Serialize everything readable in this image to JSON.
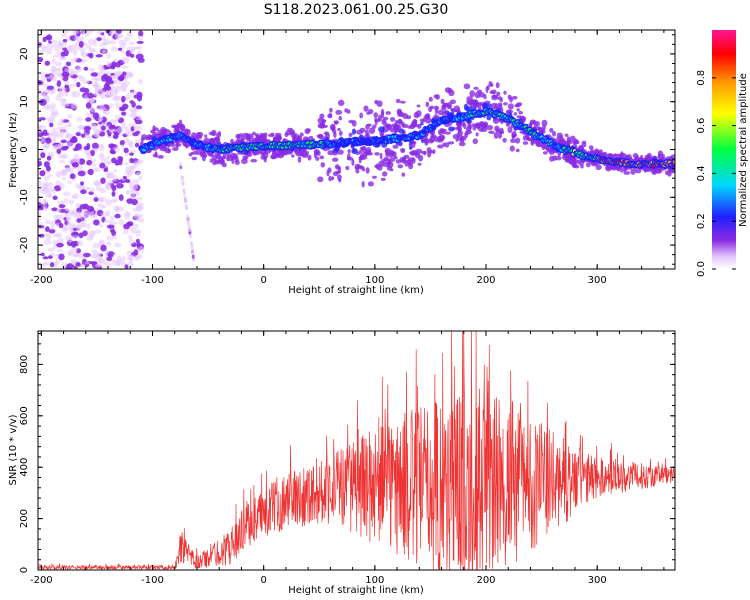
{
  "title": "S118.2023.061.00.25.G30",
  "chart_data": [
    {
      "type": "heatmap",
      "xlabel": "Height of straight line (km)",
      "ylabel": "Frequency (Hz)",
      "xlim": [
        -203,
        370
      ],
      "ylim": [
        -25,
        25
      ],
      "xticks": [
        -200,
        -100,
        0,
        100,
        200,
        300
      ],
      "yticks": [
        -20,
        -10,
        0,
        10,
        20
      ],
      "colorbar": {
        "label": "Normalized spectral amplitude",
        "range": [
          0,
          1
        ],
        "ticks": [
          "0.0",
          "0.2",
          "0.4",
          "0.6",
          "0.8"
        ],
        "colormap": "rainbow (white → violet → blue → cyan → green → yellow → orange → red → magenta)"
      },
      "ridge": {
        "description": "dominant frequency vs height",
        "points": [
          {
            "x": -110,
            "y": 0
          },
          {
            "x": -90,
            "y": 2
          },
          {
            "x": -75,
            "y": 3
          },
          {
            "x": -60,
            "y": 1
          },
          {
            "x": -40,
            "y": 0
          },
          {
            "x": 0,
            "y": 0.8
          },
          {
            "x": 50,
            "y": 1
          },
          {
            "x": 80,
            "y": 1.5
          },
          {
            "x": 110,
            "y": 2
          },
          {
            "x": 140,
            "y": 3
          },
          {
            "x": 160,
            "y": 6
          },
          {
            "x": 180,
            "y": 7
          },
          {
            "x": 200,
            "y": 8
          },
          {
            "x": 220,
            "y": 6.5
          },
          {
            "x": 245,
            "y": 3
          },
          {
            "x": 270,
            "y": 0
          },
          {
            "x": 300,
            "y": -2
          },
          {
            "x": 330,
            "y": -3
          },
          {
            "x": 370,
            "y": -3
          }
        ]
      },
      "noise_region": {
        "x_from": -203,
        "x_to": -110
      }
    },
    {
      "type": "line",
      "xlabel": "Height of straight line (km)",
      "ylabel": "SNR (10 * v/v)",
      "xlim": [
        -203,
        370
      ],
      "ylim": [
        0,
        930
      ],
      "xticks": [
        -200,
        -100,
        0,
        100,
        200,
        300
      ],
      "yticks": [
        0,
        200,
        400,
        600,
        800
      ],
      "color": "#ee3333",
      "envelope": {
        "description": "approximate trend (center) and spread of the noisy SNR trace",
        "points": [
          {
            "x": -203,
            "center": 10,
            "spread": 8
          },
          {
            "x": -80,
            "center": 10,
            "spread": 8
          },
          {
            "x": -75,
            "center": 80,
            "spread": 60
          },
          {
            "x": -60,
            "center": 30,
            "spread": 30
          },
          {
            "x": -30,
            "center": 90,
            "spread": 70
          },
          {
            "x": -15,
            "center": 180,
            "spread": 90
          },
          {
            "x": 20,
            "center": 270,
            "spread": 110
          },
          {
            "x": 60,
            "center": 320,
            "spread": 140
          },
          {
            "x": 100,
            "center": 330,
            "spread": 230
          },
          {
            "x": 150,
            "center": 320,
            "spread": 350
          },
          {
            "x": 180,
            "center": 330,
            "spread": 420
          },
          {
            "x": 220,
            "center": 330,
            "spread": 330
          },
          {
            "x": 260,
            "center": 340,
            "spread": 200
          },
          {
            "x": 300,
            "center": 360,
            "spread": 80
          },
          {
            "x": 370,
            "center": 370,
            "spread": 30
          }
        ]
      }
    }
  ]
}
